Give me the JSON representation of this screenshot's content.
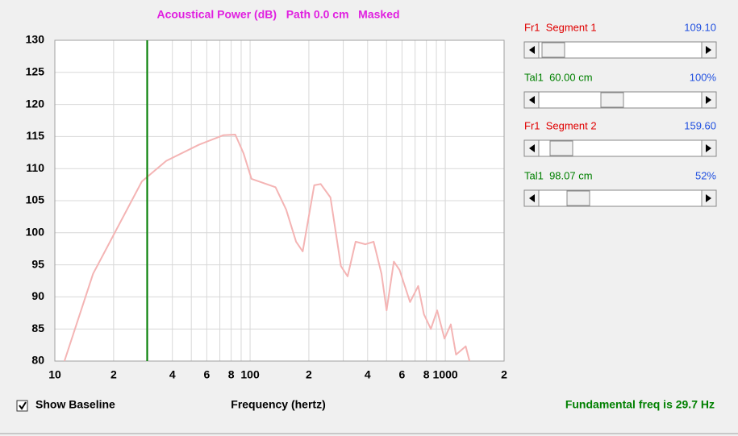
{
  "chart_data": {
    "type": "line",
    "title": "Acoustical Power (dB)   Path 0.0 cm   Masked",
    "xlabel": "Frequency (hertz)",
    "log_x": true,
    "grid": true,
    "color": "#f4b4b4",
    "x": [
      11.2,
      15.7,
      27.9,
      37.2,
      54.6,
      72.9,
      84,
      92.5,
      101.7,
      135,
      153,
      172,
      186,
      213,
      230,
      258,
      292,
      316,
      347,
      390,
      429,
      471,
      500,
      545,
      583,
      660,
      726,
      777,
      843,
      908,
      990,
      1066,
      1135,
      1272,
      1330
    ],
    "values": [
      80,
      93.6,
      108,
      111.2,
      113.7,
      115.2,
      115.3,
      112.4,
      108.4,
      107.1,
      103.6,
      98.6,
      97.1,
      107.4,
      107.6,
      105.5,
      94.8,
      93.2,
      98.6,
      98.2,
      98.6,
      93.6,
      87.9,
      95.5,
      94.2,
      89.2,
      91.7,
      87.3,
      85,
      87.9,
      83.5,
      85.7,
      81,
      82.3,
      80
    ],
    "xlim": [
      10,
      2000
    ],
    "xticks": [
      10,
      {
        "value": 20,
        "label": "2"
      },
      {
        "value": 40,
        "label": "4"
      },
      {
        "value": 60,
        "label": "6"
      },
      {
        "value": 80,
        "label": "8"
      },
      100,
      {
        "value": 200,
        "label": "2"
      },
      {
        "value": 400,
        "label": "4"
      },
      {
        "value": 600,
        "label": "6"
      },
      {
        "value": 800,
        "label": "8"
      },
      1000,
      {
        "value": 2000,
        "label": "2"
      }
    ],
    "xminor": [
      30,
      50,
      70,
      90,
      300,
      500,
      700,
      900
    ],
    "ylim": [
      80,
      130
    ],
    "yticks": [
      80,
      85,
      90,
      95,
      100,
      105,
      110,
      115,
      120,
      125,
      130
    ],
    "marker": {
      "x": 29.7,
      "color": "#008000"
    }
  },
  "panel": {
    "sliders": [
      {
        "label": "Fr1  Segment 1",
        "value": "109.10",
        "color": "#e00000"
      },
      {
        "label": "Tal1  60.00 cm",
        "value": "100%",
        "color": "#008000"
      },
      {
        "label": "Fr1  Segment 2",
        "value": "159.60",
        "color": "#e00000"
      },
      {
        "label": "Tal1  98.07 cm",
        "value": "52%",
        "color": "#008000"
      }
    ]
  },
  "baseline_checkbox": {
    "label": "Show Baseline",
    "checked": true
  },
  "status": "Fundamental freq is 29.7 Hz"
}
